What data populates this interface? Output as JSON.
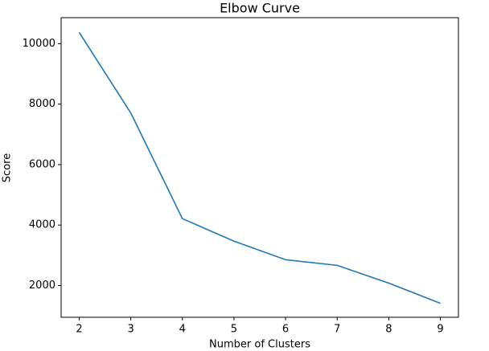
{
  "chart_data": {
    "type": "line",
    "title": "Elbow Curve",
    "xlabel": "Number of Clusters",
    "ylabel": "Score",
    "x": [
      2,
      3,
      4,
      5,
      6,
      7,
      8,
      9
    ],
    "series": [
      {
        "name": "Score",
        "color": "#1f77b4",
        "values": [
          10373,
          7707,
          4213,
          3467,
          2853,
          2667,
          2080,
          1413
        ]
      }
    ],
    "xlim": [
      1.65,
      9.35
    ],
    "xticks": [
      2,
      3,
      4,
      5,
      6,
      7,
      8,
      9
    ],
    "ylim": [
      950,
      10860
    ],
    "yticks": [
      2000,
      4000,
      6000,
      8000,
      10000
    ],
    "grid": false
  }
}
